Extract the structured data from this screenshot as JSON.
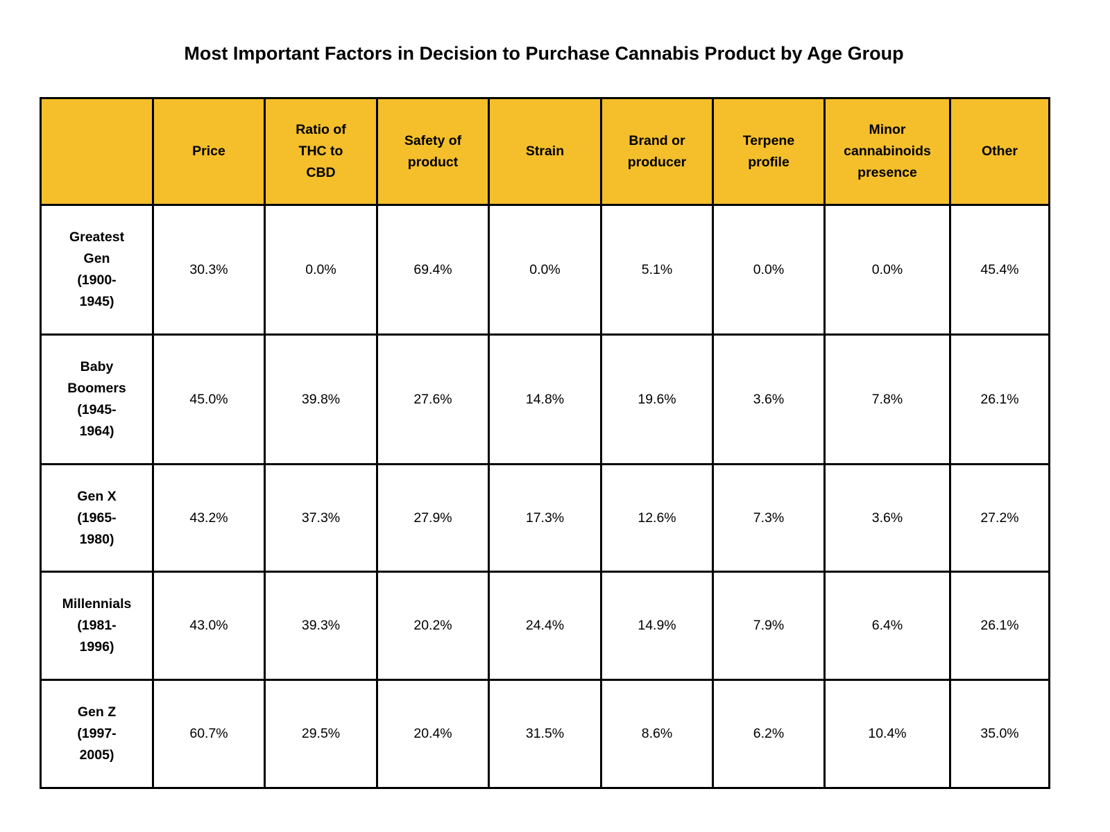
{
  "chart_data": {
    "type": "table",
    "title": "Most Important Factors in Decision to Purchase Cannabis Product by Age Group",
    "header_color": "#F4BF2A",
    "columns": [
      "",
      "Price",
      "Ratio of\nTHC to\nCBD",
      "Safety of\nproduct",
      "Strain",
      "Brand or\nproducer",
      "Terpene\nprofile",
      "Minor\ncannabinoids\npresence",
      "Other"
    ],
    "rows": [
      {
        "label": "Greatest\nGen\n(1900-\n1945)",
        "values": [
          "30.3%",
          "0.0%",
          "69.4%",
          "0.0%",
          "5.1%",
          "0.0%",
          "0.0%",
          "45.4%"
        ]
      },
      {
        "label": "Baby\nBoomers\n(1945-\n1964)",
        "values": [
          "45.0%",
          "39.8%",
          "27.6%",
          "14.8%",
          "19.6%",
          "3.6%",
          "7.8%",
          "26.1%"
        ]
      },
      {
        "label": "Gen X\n(1965-\n1980)",
        "values": [
          "43.2%",
          "37.3%",
          "27.9%",
          "17.3%",
          "12.6%",
          "7.3%",
          "3.6%",
          "27.2%"
        ]
      },
      {
        "label": "Millennials\n(1981-\n1996)",
        "values": [
          "43.0%",
          "39.3%",
          "20.2%",
          "24.4%",
          "14.9%",
          "7.9%",
          "6.4%",
          "26.1%"
        ]
      },
      {
        "label": "Gen Z\n(1997-\n2005)",
        "values": [
          "60.7%",
          "29.5%",
          "20.4%",
          "31.5%",
          "8.6%",
          "6.2%",
          "10.4%",
          "35.0%"
        ]
      }
    ]
  }
}
